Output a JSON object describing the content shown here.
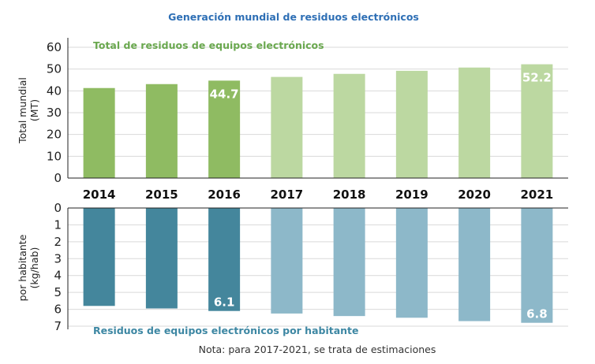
{
  "title": "Generación mundial de residuos electrónicos",
  "note": "Nota: para 2017-2021, se trata de estimaciones",
  "chart_data": [
    {
      "type": "bar",
      "panel_label": "Total de residuos de equipos electrónicos",
      "ylabel_line1": "Total mundial",
      "ylabel_line2": "(MT)",
      "categories": [
        "2014",
        "2015",
        "2016",
        "2017",
        "2018",
        "2019",
        "2020",
        "2021"
      ],
      "values": [
        41.3,
        43.1,
        44.7,
        46.4,
        47.8,
        49.2,
        50.7,
        52.2
      ],
      "estimated": [
        false,
        false,
        false,
        true,
        true,
        true,
        true,
        true
      ],
      "data_labels": [
        "",
        "",
        "44.7",
        "",
        "",
        "",
        "",
        "52.2"
      ],
      "ylim": [
        0,
        60
      ],
      "yticks": [
        "0",
        "10",
        "20",
        "30",
        "40",
        "50",
        "60"
      ],
      "color_actual": "#8fbb62",
      "color_estimated": "#bcd8a1",
      "grid": true
    },
    {
      "type": "bar",
      "orientation": "inverted",
      "panel_label": "Residuos de equipos electrónicos por habitante",
      "ylabel_line1": "por habitante",
      "ylabel_line2": "(kg/hab)",
      "categories": [
        "2014",
        "2015",
        "2016",
        "2017",
        "2018",
        "2019",
        "2020",
        "2021"
      ],
      "values": [
        5.8,
        5.95,
        6.1,
        6.25,
        6.4,
        6.5,
        6.7,
        6.8
      ],
      "estimated": [
        false,
        false,
        false,
        true,
        true,
        true,
        true,
        true
      ],
      "data_labels": [
        "",
        "",
        "6.1",
        "",
        "",
        "",
        "",
        "6.8"
      ],
      "ylim": [
        0,
        7
      ],
      "yticks": [
        "0",
        "1",
        "2",
        "3",
        "4",
        "5",
        "6",
        "7"
      ],
      "color_actual": "#44869c",
      "color_estimated": "#8db8c9",
      "grid": true
    }
  ]
}
